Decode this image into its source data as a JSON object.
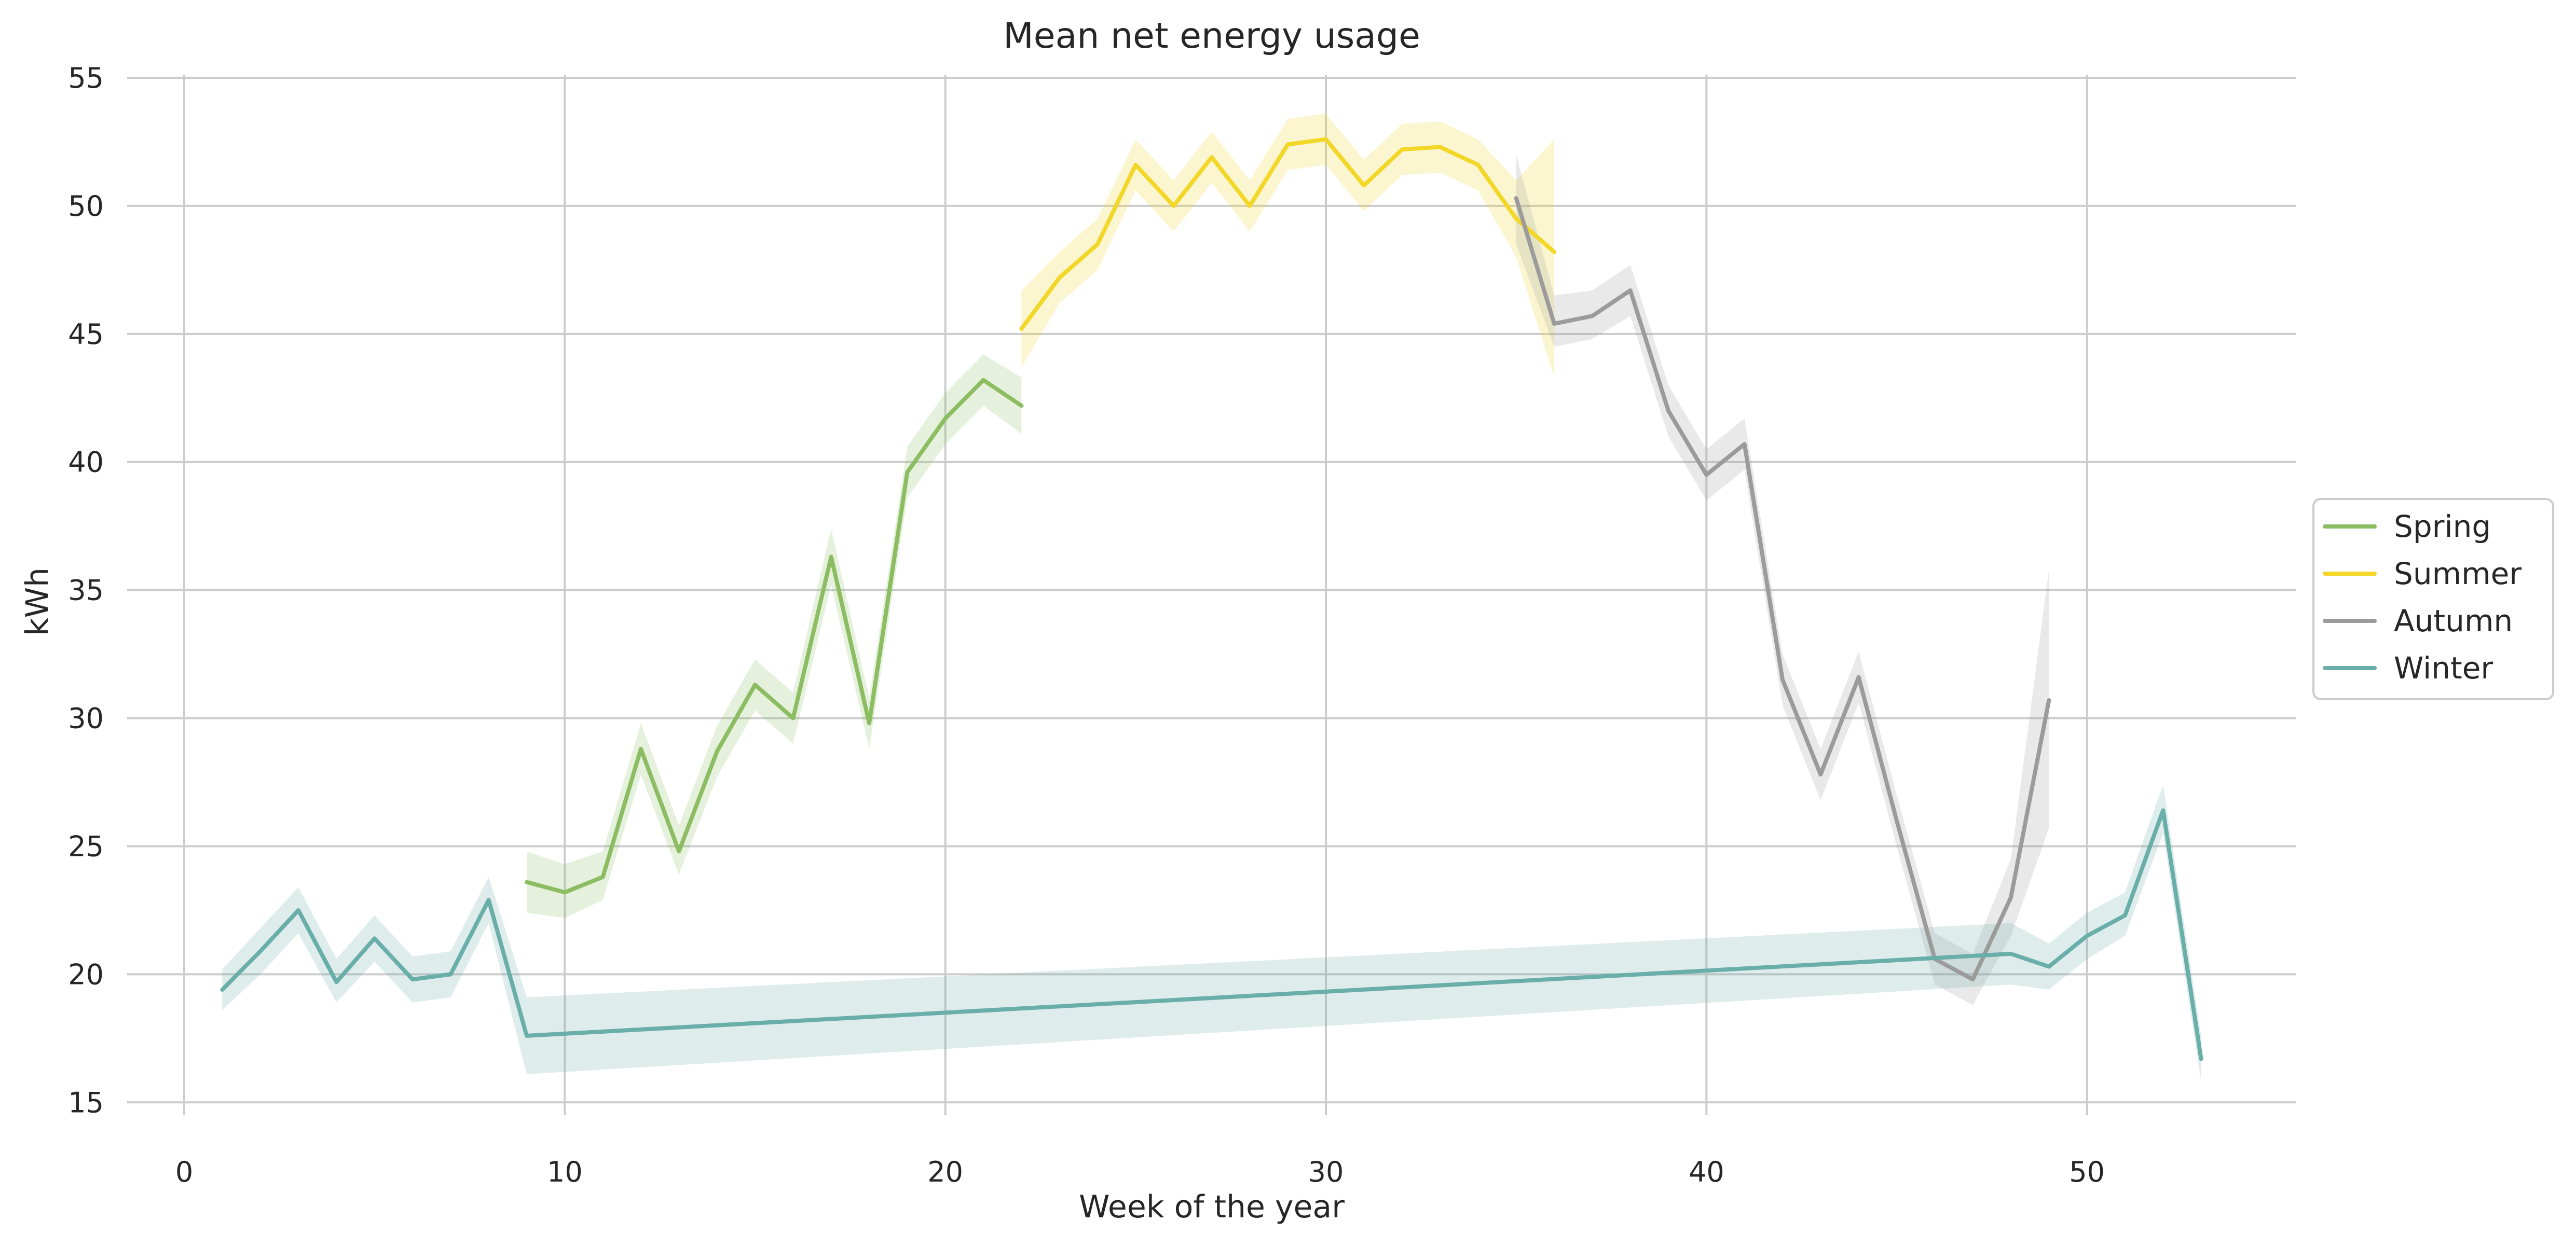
{
  "chart_data": {
    "type": "line",
    "title": "Mean net energy usage",
    "xlabel": "Week of the year",
    "ylabel": "kWh",
    "xlim": [
      -1.5,
      55.5
    ],
    "ylim": [
      14.5,
      55
    ],
    "xticks": [
      0,
      10,
      20,
      30,
      40,
      50
    ],
    "yticks": [
      15,
      20,
      25,
      30,
      35,
      40,
      45,
      50,
      55
    ],
    "grid": true,
    "legend_position": "right",
    "series": [
      {
        "name": "Spring",
        "color": "#8dbd62",
        "points": [
          [
            9,
            23.6
          ],
          [
            10,
            23.2
          ],
          [
            11,
            23.8
          ],
          [
            12,
            28.8
          ],
          [
            13,
            24.8
          ],
          [
            14,
            28.7
          ],
          [
            15,
            31.3
          ],
          [
            16,
            30.0
          ],
          [
            17,
            36.3
          ],
          [
            18,
            29.8
          ],
          [
            19,
            39.6
          ],
          [
            20,
            41.7
          ],
          [
            21,
            43.2
          ],
          [
            22,
            42.2
          ]
        ],
        "ci": [
          [
            9,
            22.4,
            24.8
          ],
          [
            10,
            22.2,
            24.3
          ],
          [
            11,
            22.9,
            24.8
          ],
          [
            12,
            27.8,
            29.8
          ],
          [
            13,
            23.9,
            25.8
          ],
          [
            14,
            27.7,
            29.7
          ],
          [
            15,
            30.3,
            32.3
          ],
          [
            16,
            29.0,
            31.0
          ],
          [
            17,
            35.2,
            37.4
          ],
          [
            18,
            28.8,
            30.8
          ],
          [
            19,
            38.6,
            40.6
          ],
          [
            20,
            40.7,
            42.7
          ],
          [
            21,
            42.2,
            44.2
          ],
          [
            22,
            41.1,
            43.3
          ]
        ]
      },
      {
        "name": "Summer",
        "color": "#f2d728",
        "points": [
          [
            22,
            45.2
          ],
          [
            23,
            47.2
          ],
          [
            24,
            48.5
          ],
          [
            25,
            51.6
          ],
          [
            26,
            50.0
          ],
          [
            27,
            51.9
          ],
          [
            28,
            50.0
          ],
          [
            29,
            52.4
          ],
          [
            30,
            52.6
          ],
          [
            31,
            50.8
          ],
          [
            32,
            52.2
          ],
          [
            33,
            52.3
          ],
          [
            34,
            51.6
          ],
          [
            35,
            49.5
          ],
          [
            36,
            48.2
          ]
        ],
        "ci": [
          [
            22,
            43.7,
            46.7
          ],
          [
            23,
            46.2,
            48.2
          ],
          [
            24,
            47.5,
            49.5
          ],
          [
            25,
            50.6,
            52.6
          ],
          [
            26,
            49.0,
            51.0
          ],
          [
            27,
            50.9,
            52.9
          ],
          [
            28,
            49.0,
            51.0
          ],
          [
            29,
            51.4,
            53.4
          ],
          [
            30,
            51.6,
            53.6
          ],
          [
            31,
            49.8,
            51.8
          ],
          [
            32,
            51.2,
            53.2
          ],
          [
            33,
            51.3,
            53.3
          ],
          [
            34,
            50.6,
            52.6
          ],
          [
            35,
            48.0,
            51.0
          ],
          [
            36,
            43.3,
            52.6
          ]
        ]
      },
      {
        "name": "Autumn",
        "color": "#9b9b9b",
        "points": [
          [
            35,
            50.3
          ],
          [
            36,
            45.4
          ],
          [
            37,
            45.7
          ],
          [
            38,
            46.7
          ],
          [
            39,
            42.0
          ],
          [
            40,
            39.5
          ],
          [
            41,
            40.7
          ],
          [
            42,
            31.5
          ],
          [
            43,
            27.8
          ],
          [
            44,
            31.6
          ],
          [
            45,
            26.0
          ],
          [
            46,
            20.6
          ],
          [
            47,
            19.8
          ],
          [
            48,
            23.0
          ],
          [
            49,
            30.7
          ]
        ],
        "ci": [
          [
            35,
            48.5,
            52.0
          ],
          [
            36,
            44.5,
            46.5
          ],
          [
            37,
            44.8,
            46.7
          ],
          [
            38,
            45.7,
            47.7
          ],
          [
            39,
            41.0,
            43.0
          ],
          [
            40,
            38.5,
            40.5
          ],
          [
            41,
            39.7,
            41.7
          ],
          [
            42,
            30.5,
            32.5
          ],
          [
            43,
            26.8,
            28.8
          ],
          [
            44,
            30.6,
            32.6
          ],
          [
            45,
            25.0,
            27.0
          ],
          [
            46,
            19.6,
            21.6
          ],
          [
            47,
            18.8,
            20.8
          ],
          [
            48,
            21.5,
            24.5
          ],
          [
            49,
            25.7,
            35.8
          ]
        ]
      },
      {
        "name": "Winter",
        "color": "#6aaeaa",
        "points": [
          [
            1,
            19.4
          ],
          [
            2,
            20.9
          ],
          [
            3,
            22.5
          ],
          [
            4,
            19.7
          ],
          [
            5,
            21.4
          ],
          [
            6,
            19.8
          ],
          [
            7,
            20.0
          ],
          [
            8,
            22.9
          ],
          [
            9,
            17.6
          ],
          [
            48,
            20.8
          ],
          [
            49,
            20.3
          ],
          [
            50,
            21.5
          ],
          [
            51,
            22.3
          ],
          [
            52,
            26.4
          ],
          [
            53,
            16.7
          ]
        ],
        "ci": [
          [
            1,
            18.6,
            20.2
          ],
          [
            2,
            20.0,
            21.8
          ],
          [
            3,
            21.6,
            23.4
          ],
          [
            4,
            18.9,
            20.6
          ],
          [
            5,
            20.5,
            22.3
          ],
          [
            6,
            18.9,
            20.7
          ],
          [
            7,
            19.1,
            20.9
          ],
          [
            8,
            22.0,
            23.8
          ],
          [
            9,
            16.1,
            19.1
          ],
          [
            48,
            19.6,
            22.0
          ],
          [
            49,
            19.4,
            21.2
          ],
          [
            50,
            20.6,
            22.4
          ],
          [
            51,
            21.5,
            23.2
          ],
          [
            52,
            25.5,
            27.4
          ],
          [
            53,
            15.8,
            17.6
          ]
        ]
      }
    ]
  }
}
